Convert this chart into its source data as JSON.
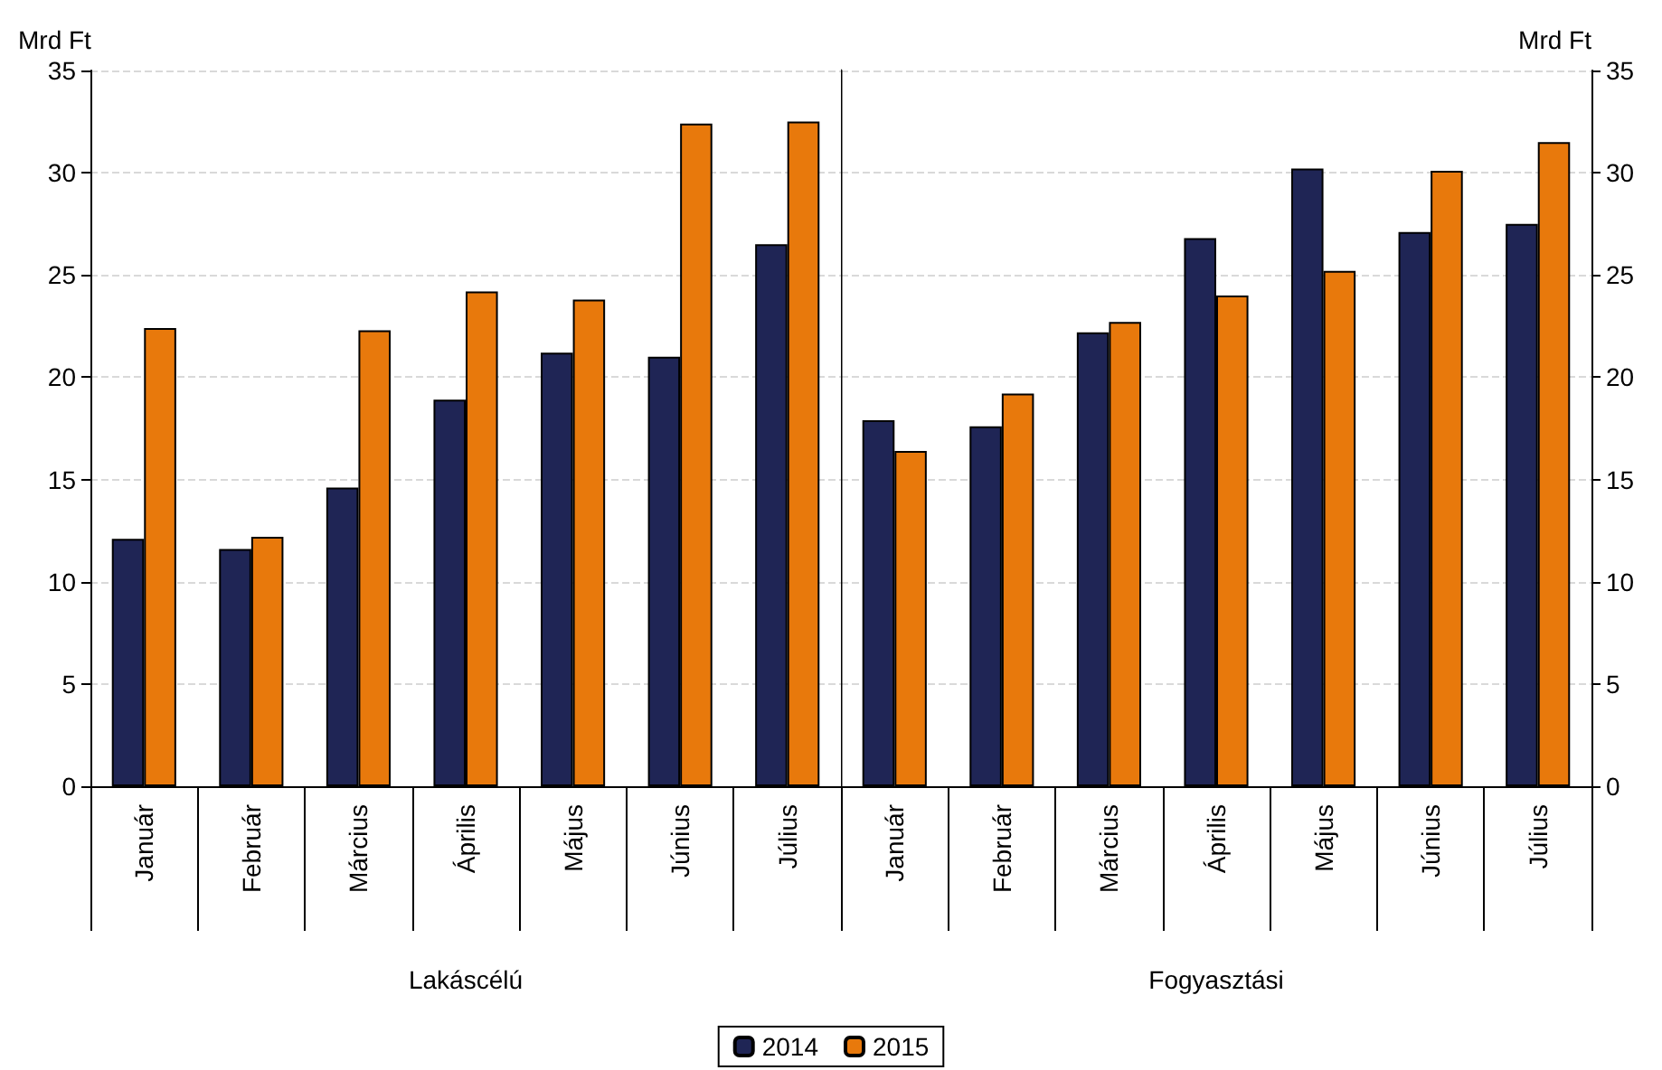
{
  "chart_data": [
    {
      "type": "bar",
      "xlabel": "Lakáscélú",
      "ylabel": "Mrd Ft",
      "categories": [
        "Január",
        "Február",
        "Március",
        "Április",
        "Május",
        "Június",
        "Július"
      ],
      "series": [
        {
          "name": "2014",
          "color": "#1f2555",
          "values": [
            12.1,
            11.6,
            14.6,
            18.9,
            21.2,
            21.0,
            26.5
          ]
        },
        {
          "name": "2015",
          "color": "#e8790c",
          "values": [
            22.4,
            12.2,
            22.3,
            24.2,
            23.8,
            32.4,
            32.5
          ]
        }
      ],
      "ylim": [
        0,
        35
      ],
      "yticks": [
        0,
        5,
        10,
        15,
        20,
        25,
        30,
        35
      ],
      "grid": "y",
      "legend": "bottom"
    },
    {
      "type": "bar",
      "xlabel": "Fogyasztási",
      "y2label": "Mrd Ft",
      "categories": [
        "Január",
        "Február",
        "Március",
        "Április",
        "Május",
        "Június",
        "Július"
      ],
      "series": [
        {
          "name": "2014",
          "color": "#1f2555",
          "values": [
            17.9,
            17.6,
            22.2,
            26.8,
            30.2,
            27.1,
            27.5
          ],
          "axis": "y2"
        },
        {
          "name": "2015",
          "color": "#e8790c",
          "values": [
            16.4,
            19.2,
            22.7,
            24.0,
            25.2,
            30.1,
            31.5
          ],
          "axis": "y2"
        }
      ],
      "y2lim": [
        0,
        35
      ],
      "y2ticks": [
        0,
        5,
        10,
        15,
        20,
        25,
        30,
        35
      ],
      "grid": "y"
    }
  ]
}
